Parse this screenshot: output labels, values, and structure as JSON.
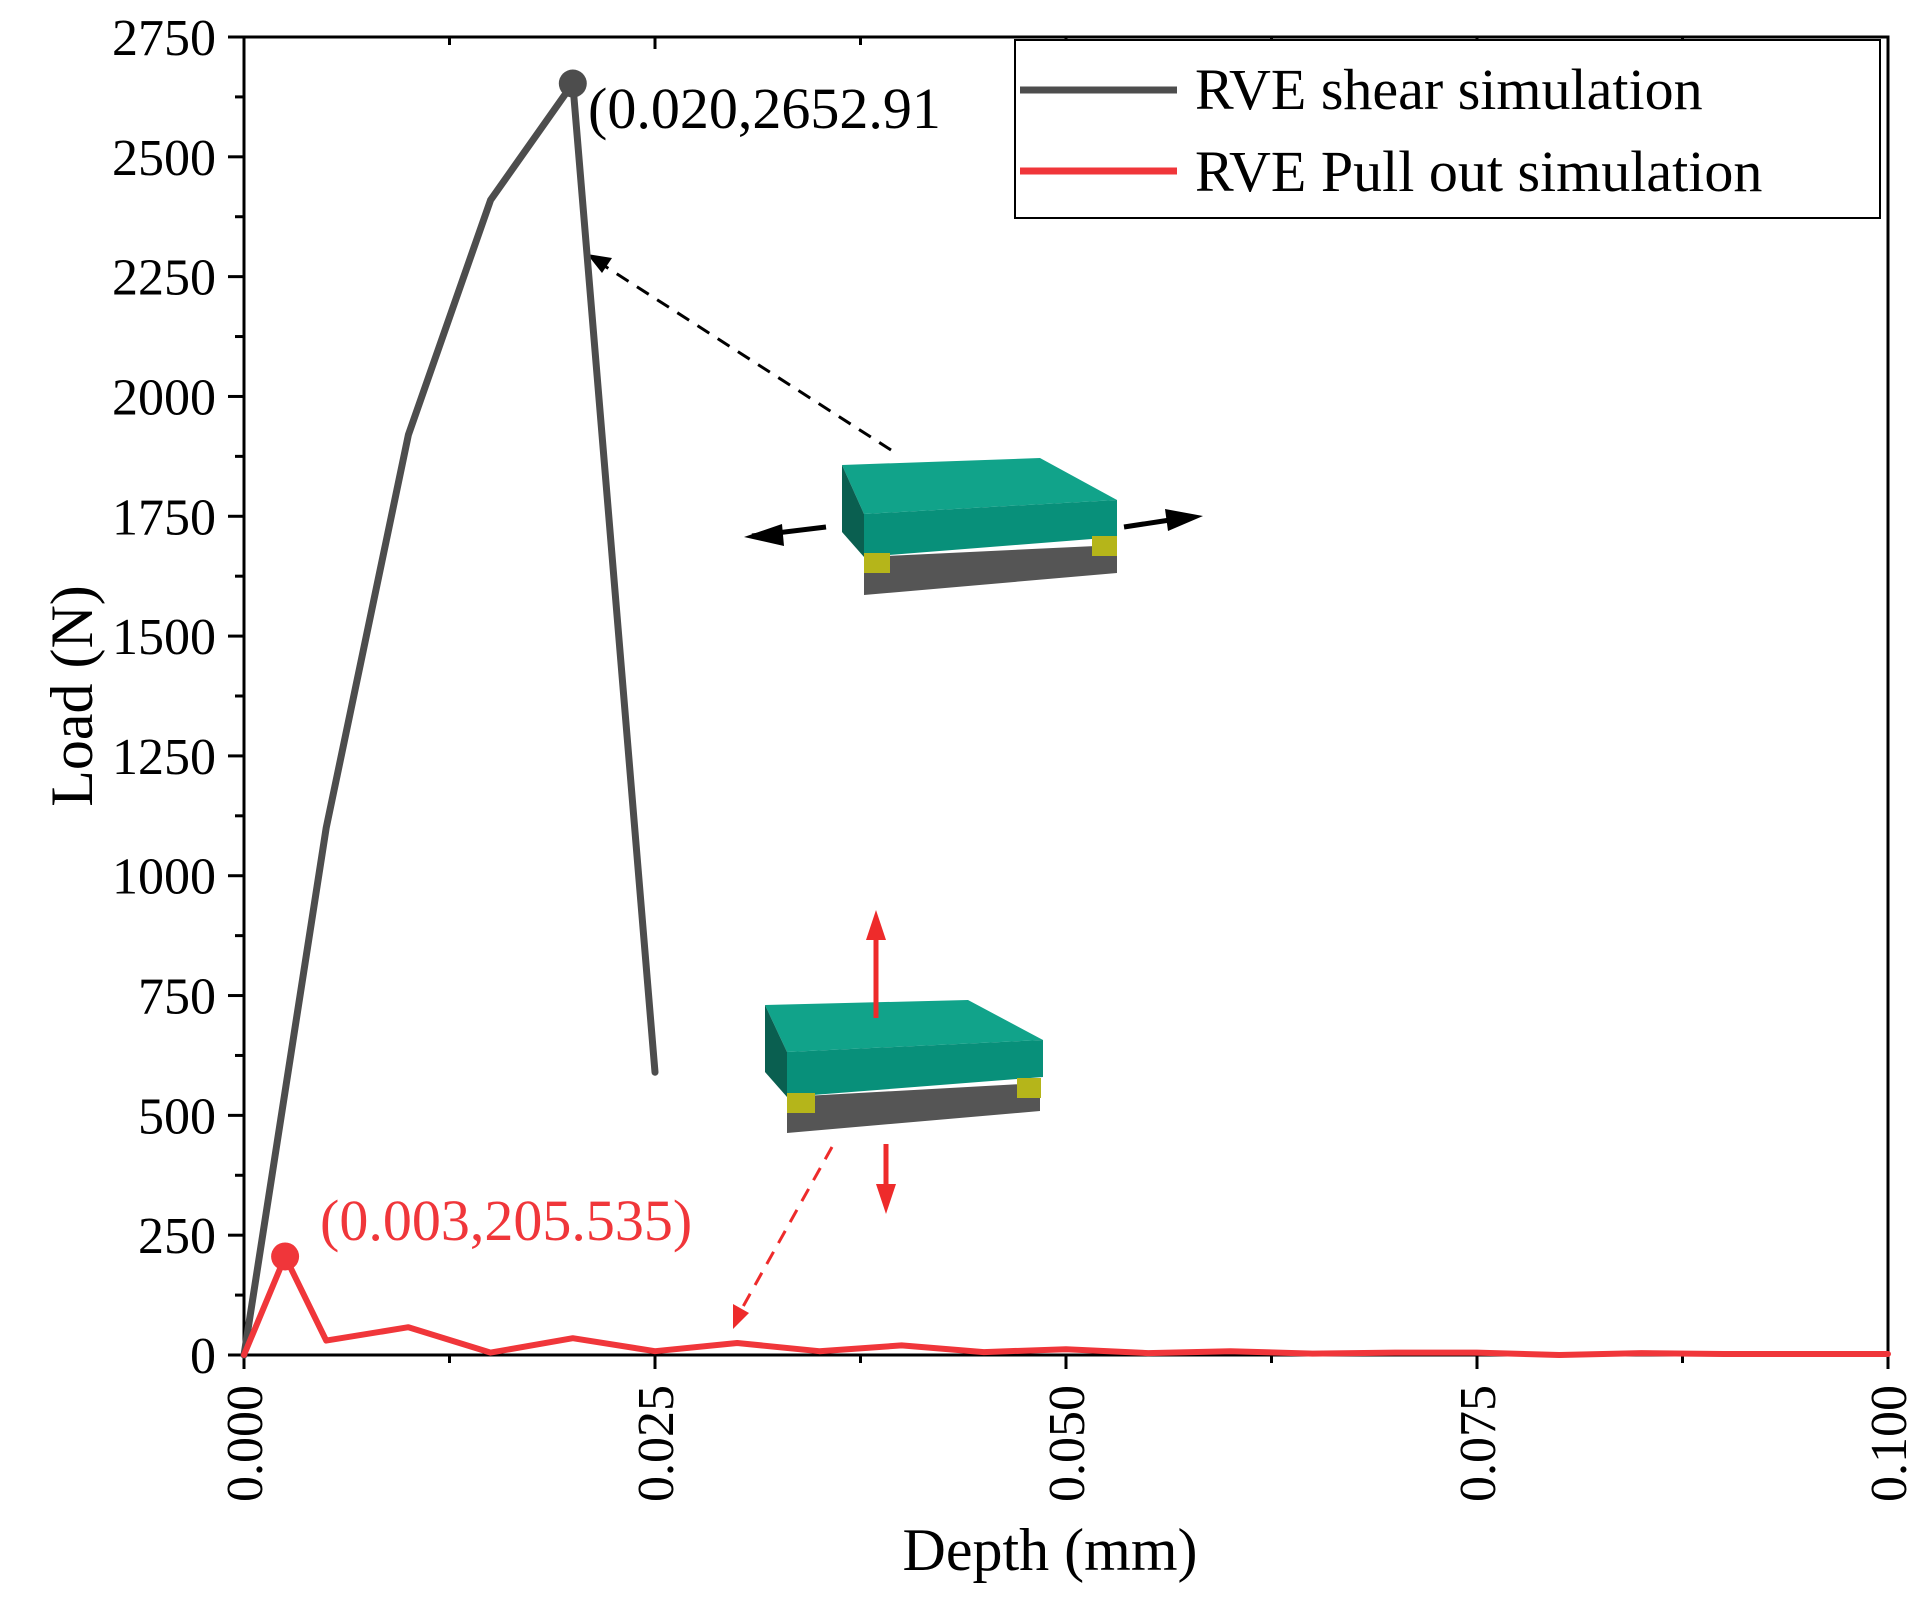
{
  "chart_data": {
    "type": "line",
    "xlabel": "Depth (mm)",
    "ylabel": "Load (N)",
    "xlim": [
      0,
      0.1
    ],
    "ylim": [
      0,
      2750
    ],
    "xticks": [
      "0.000",
      "0.025",
      "0.050",
      "0.075",
      "0.100"
    ],
    "yticks": [
      "0",
      "250",
      "500",
      "750",
      "1000",
      "1250",
      "1500",
      "1750",
      "2000",
      "2250",
      "2500",
      "2750"
    ],
    "legend_position": "top-right",
    "series": [
      {
        "name": "RVE shear simulation",
        "color": "#4d4d4d",
        "x": [
          0,
          0.005,
          0.01,
          0.015,
          0.02,
          0.025
        ],
        "y": [
          0,
          1100,
          1920,
          2410,
          2652.91,
          590
        ]
      },
      {
        "name": "RVE Pull out simulation",
        "color": "#f0363a",
        "x": [
          0,
          0.0025,
          0.005,
          0.01,
          0.015,
          0.02,
          0.025,
          0.03,
          0.035,
          0.04,
          0.045,
          0.05,
          0.055,
          0.06,
          0.065,
          0.07,
          0.075,
          0.08,
          0.085,
          0.09,
          0.095,
          0.1
        ],
        "y": [
          0,
          205.535,
          30,
          58,
          5,
          35,
          8,
          25,
          8,
          20,
          6,
          12,
          4,
          8,
          3,
          5,
          5,
          0,
          4,
          2,
          2,
          2
        ]
      }
    ],
    "annotations": [
      {
        "text": "(0.020,2652.91",
        "series": 0,
        "x": 0.02,
        "y": 2652.91,
        "color": "#000000"
      },
      {
        "text": "(0.003,205.535)",
        "series": 1,
        "x": 0.0025,
        "y": 205.535,
        "color": "#f0363a"
      }
    ]
  },
  "insets": {
    "slab_top": "#11a38a",
    "slab_side": "#0a6f5e",
    "slab_front": "#078a73",
    "base": "#555555",
    "pad": "#b5b51a",
    "shear_arrow": "#000000",
    "pull_arrow": "#ee2b2b"
  }
}
